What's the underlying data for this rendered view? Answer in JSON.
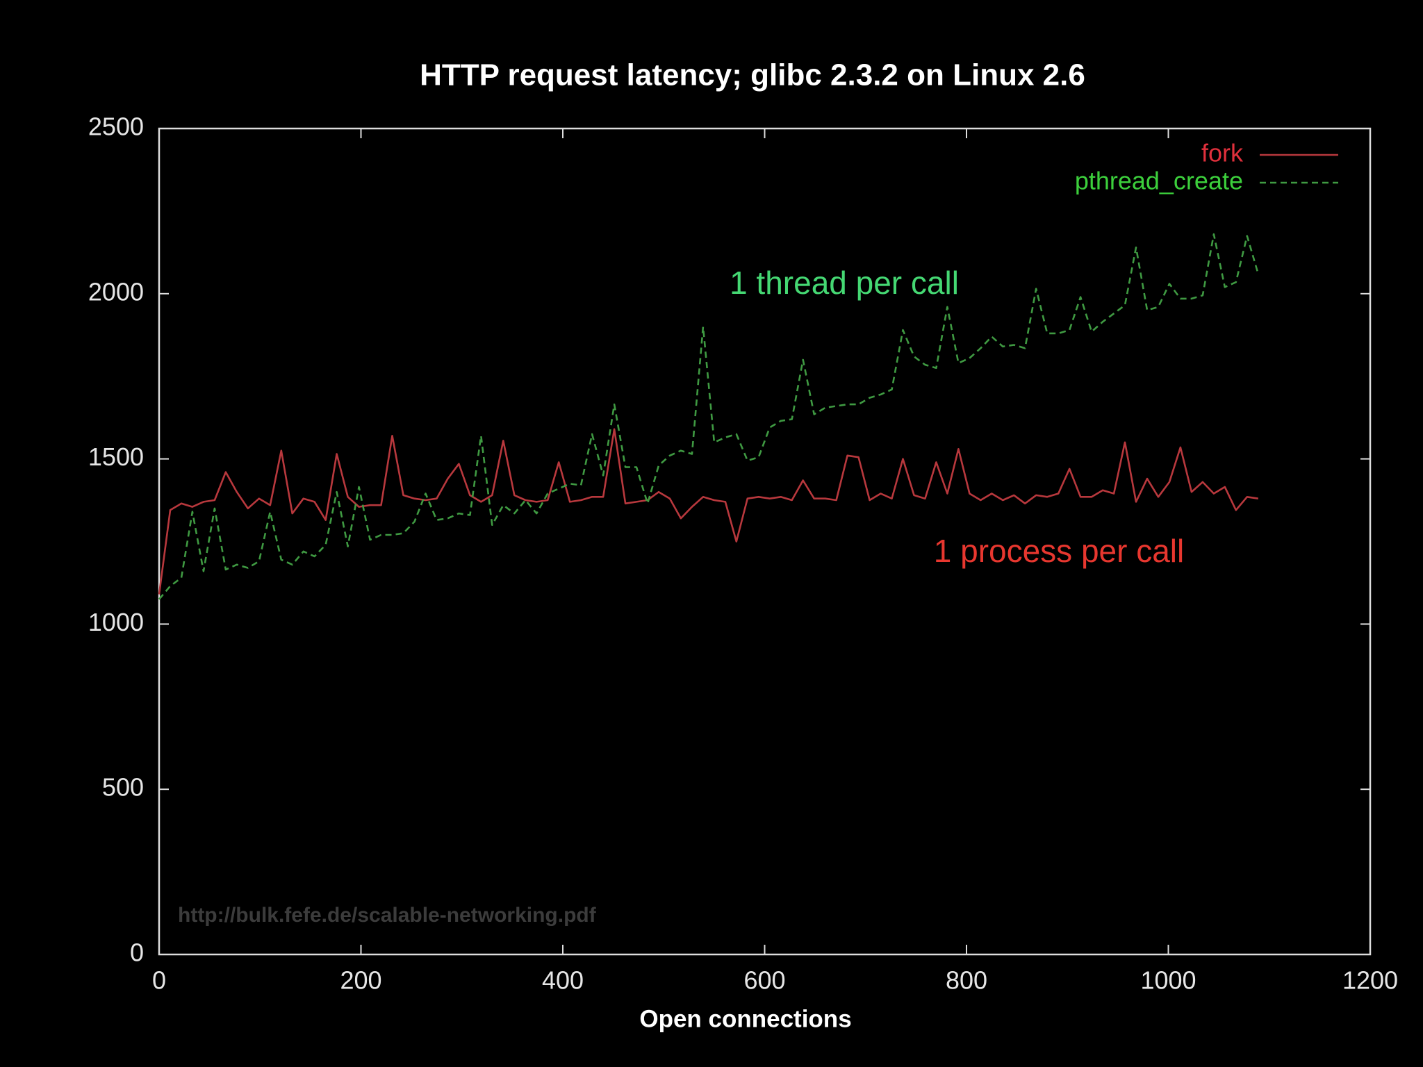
{
  "chart_data": {
    "type": "line",
    "title": "HTTP request latency; glibc 2.3.2 on Linux 2.6",
    "xlabel": "Open connections",
    "xlim": [
      0,
      1200
    ],
    "xticks": [
      0,
      200,
      400,
      600,
      800,
      1000,
      1200
    ],
    "ylim": [
      0,
      2500
    ],
    "yticks": [
      0,
      500,
      1000,
      1500,
      2000,
      2500
    ],
    "legend": "top-right",
    "x": [
      0,
      11,
      22,
      33,
      44,
      55,
      66,
      77,
      88,
      99,
      110,
      121,
      132,
      143,
      154,
      165,
      176,
      187,
      198,
      209,
      220,
      231,
      242,
      253,
      264,
      275,
      286,
      297,
      308,
      319,
      330,
      341,
      352,
      363,
      374,
      385,
      396,
      407,
      418,
      429,
      440,
      451,
      462,
      473,
      484,
      495,
      506,
      517,
      528,
      539,
      550,
      561,
      572,
      583,
      594,
      605,
      616,
      627,
      638,
      649,
      660,
      671,
      682,
      693,
      704,
      715,
      726,
      737,
      748,
      759,
      770,
      781,
      792,
      803,
      814,
      825,
      836,
      847,
      858,
      869,
      880,
      891,
      902,
      913,
      924,
      935,
      946,
      957,
      968,
      979,
      990,
      1001,
      1012,
      1023,
      1034,
      1045,
      1056,
      1067,
      1078,
      1089
    ],
    "series": [
      {
        "name": "fork",
        "color": "#b8383d",
        "dashed": false,
        "values": [
          1090,
          1345,
          1365,
          1355,
          1370,
          1375,
          1460,
          1400,
          1350,
          1380,
          1360,
          1525,
          1335,
          1380,
          1370,
          1315,
          1515,
          1385,
          1355,
          1360,
          1360,
          1570,
          1390,
          1380,
          1375,
          1380,
          1440,
          1485,
          1390,
          1370,
          1390,
          1555,
          1390,
          1375,
          1370,
          1375,
          1490,
          1370,
          1375,
          1385,
          1385,
          1590,
          1365,
          1370,
          1375,
          1400,
          1380,
          1320,
          1355,
          1385,
          1375,
          1370,
          1250,
          1380,
          1385,
          1380,
          1385,
          1375,
          1435,
          1380,
          1380,
          1375,
          1510,
          1505,
          1375,
          1395,
          1380,
          1500,
          1390,
          1380,
          1490,
          1395,
          1530,
          1395,
          1375,
          1395,
          1375,
          1390,
          1365,
          1390,
          1385,
          1395,
          1470,
          1385,
          1385,
          1405,
          1395,
          1550,
          1370,
          1440,
          1385,
          1430,
          1535,
          1400,
          1430,
          1395,
          1415,
          1345,
          1385,
          1380
        ]
      },
      {
        "name": "pthread_create",
        "color": "#3f9a42",
        "dashed": true,
        "values": [
          1075,
          1115,
          1140,
          1340,
          1160,
          1350,
          1165,
          1180,
          1170,
          1190,
          1340,
          1195,
          1180,
          1220,
          1205,
          1240,
          1400,
          1235,
          1415,
          1255,
          1270,
          1270,
          1275,
          1310,
          1395,
          1315,
          1320,
          1335,
          1330,
          1570,
          1300,
          1360,
          1335,
          1375,
          1335,
          1395,
          1410,
          1425,
          1420,
          1575,
          1450,
          1665,
          1475,
          1475,
          1365,
          1480,
          1510,
          1525,
          1515,
          1900,
          1550,
          1565,
          1575,
          1495,
          1505,
          1595,
          1615,
          1620,
          1800,
          1635,
          1655,
          1660,
          1665,
          1665,
          1685,
          1695,
          1710,
          1890,
          1810,
          1785,
          1775,
          1960,
          1790,
          1805,
          1835,
          1870,
          1840,
          1845,
          1835,
          2015,
          1880,
          1880,
          1890,
          1990,
          1885,
          1915,
          1940,
          1965,
          2140,
          1950,
          1960,
          2030,
          1985,
          1985,
          1995,
          2180,
          2020,
          2035,
          2175,
          2060
        ]
      }
    ],
    "annotations": [
      {
        "text": "1 thread per call",
        "color": "#45d873"
      },
      {
        "text": "1 process per call",
        "color": "#e8372f"
      },
      {
        "text": "http://bulk.fefe.de/scalable-networking.pdf",
        "color": "#3c3c3c"
      }
    ]
  }
}
